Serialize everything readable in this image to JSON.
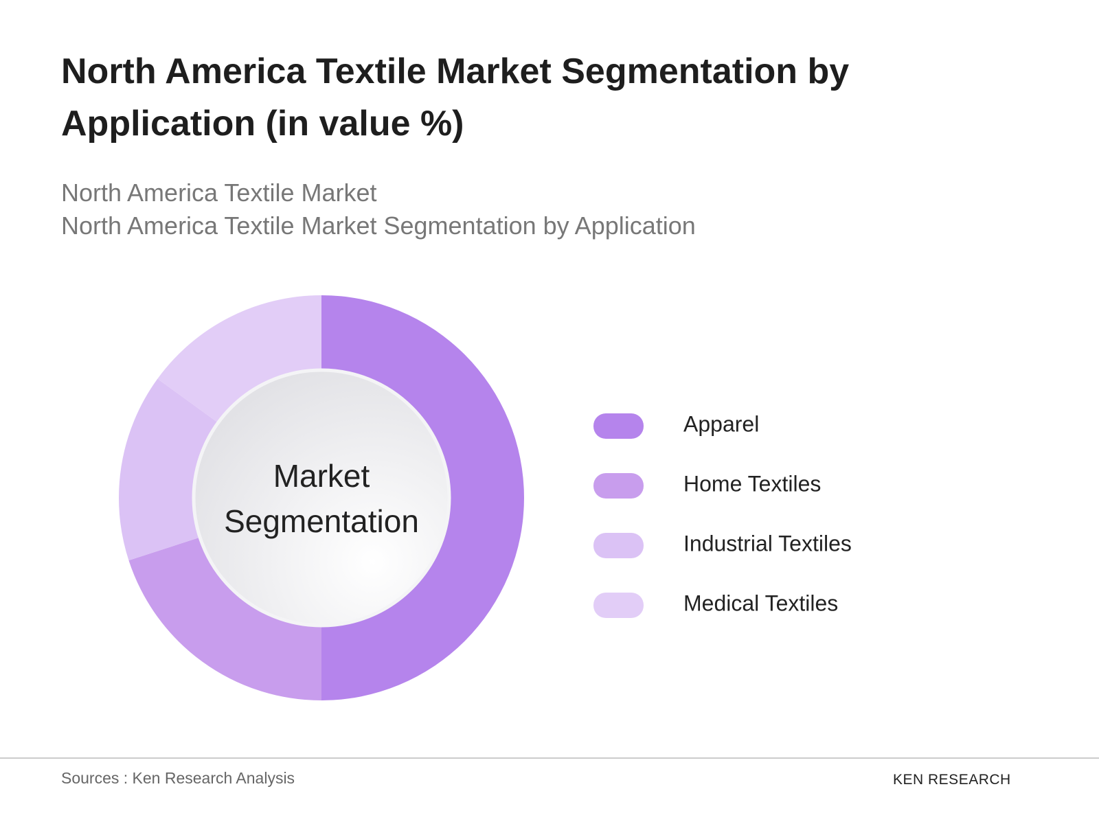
{
  "chart_data": {
    "type": "donut",
    "title": "North America Textile Market Segmentation by Application (in value %)",
    "subtitle": [
      "North America Textile Market",
      "North America Textile Market Segmentation by Application"
    ],
    "center_label": "Market Segmentation",
    "categories": [
      "Apparel",
      "Home Textiles",
      "Industrial Textiles",
      "Medical Textiles"
    ],
    "values": [
      50,
      20,
      15,
      15
    ],
    "colors": [
      "#b584ec",
      "#c89ded",
      "#dbc2f5",
      "#e2cdf7"
    ],
    "legend": "right",
    "source": "Sources : Ken Research Analysis",
    "logo": "KEN RESEARCH"
  }
}
